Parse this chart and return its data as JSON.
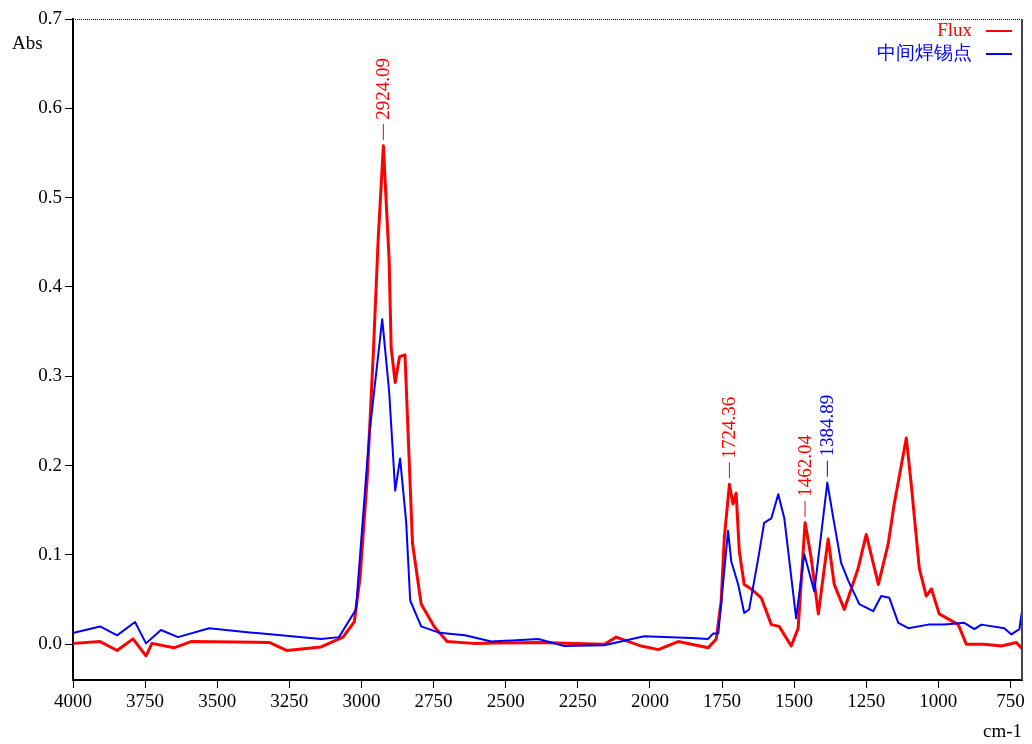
{
  "chart_data": {
    "type": "line",
    "xlabel": "cm-1",
    "ylabel": "Abs",
    "xlim": [
      4000,
      710
    ],
    "ylim": [
      -0.04,
      0.7
    ],
    "xticks": [
      4000,
      3750,
      3500,
      3250,
      3000,
      2750,
      2500,
      2250,
      2000,
      1750,
      1500,
      1250,
      1000,
      750
    ],
    "yticks": [
      {
        "value": 0,
        "label": "0.0"
      },
      {
        "value": 0.1,
        "label": "0.1"
      },
      {
        "value": 0.2,
        "label": "0.2"
      },
      {
        "value": 0.3,
        "label": "0.3"
      },
      {
        "value": 0.4,
        "label": "0.4"
      },
      {
        "value": 0.5,
        "label": "0.5"
      },
      {
        "value": 0.6,
        "label": "0.6"
      },
      {
        "value": 0.7,
        "label": "0.7"
      }
    ],
    "grid": false,
    "legend": "top right",
    "marker": "none",
    "line_style": "solid",
    "series": [
      {
        "name": "Flux",
        "color": "#ff0000",
        "x": [
          3997,
          3906,
          3847,
          3792,
          3747,
          3726,
          3650,
          3591,
          3320,
          3258,
          3140,
          3064,
          3025,
          3005,
          2980,
          2958,
          2942,
          2924,
          2904,
          2897,
          2883,
          2868,
          2849,
          2838,
          2823,
          2793,
          2748,
          2703,
          2613,
          2387,
          2158,
          2117,
          2030,
          1971,
          1902,
          1798,
          1770,
          1753,
          1742,
          1724.36,
          1712,
          1701,
          1690,
          1673,
          1649,
          1614,
          1579,
          1552,
          1510,
          1486,
          1462.04,
          1441,
          1416,
          1382,
          1361,
          1326,
          1278,
          1250,
          1208,
          1174,
          1153,
          1111,
          1094,
          1066,
          1042,
          1024,
          997,
          931,
          903,
          841,
          782,
          730,
          712
        ],
        "values": [
          0.001,
          0.003,
          -0.007,
          0.006,
          -0.013,
          0.001,
          -0.004,
          0.003,
          0.002,
          -0.007,
          -0.003,
          0.008,
          0.025,
          0.074,
          0.186,
          0.332,
          0.453,
          0.558,
          0.43,
          0.332,
          0.293,
          0.322,
          0.324,
          0.234,
          0.113,
          0.045,
          0.02,
          0.003,
          0.001,
          0.002,
          0,
          0.008,
          -0.002,
          -0.006,
          0.003,
          -0.004,
          0.006,
          0.048,
          0.119,
          0.179,
          0.157,
          0.169,
          0.104,
          0.067,
          0.062,
          0.052,
          0.022,
          0.02,
          -0.002,
          0.018,
          0.136,
          0.097,
          0.034,
          0.118,
          0.067,
          0.039,
          0.085,
          0.123,
          0.067,
          0.112,
          0.157,
          0.231,
          0.179,
          0.085,
          0.054,
          0.062,
          0.034,
          0.022,
          0,
          0,
          -0.002,
          0.002,
          -0.004
        ]
      },
      {
        "name": "中间焊锡点",
        "color": "#0000ff",
        "x": [
          3997,
          3906,
          3847,
          3785,
          3747,
          3695,
          3636,
          3528,
          3379,
          3140,
          3078,
          3019,
          2973,
          2928,
          2904,
          2883,
          2866,
          2845,
          2831,
          2793,
          2731,
          2641,
          2550,
          2387,
          2297,
          2158,
          2020,
          1857,
          1798,
          1781,
          1763,
          1729,
          1718,
          1694,
          1673,
          1656,
          1624,
          1604,
          1579,
          1555,
          1534,
          1493,
          1465,
          1430,
          1384.89,
          1364,
          1337,
          1312,
          1274,
          1226,
          1198,
          1170,
          1139,
          1104,
          1035,
          979,
          910,
          875,
          851,
          771,
          747,
          719,
          711
        ],
        "values": [
          0.013,
          0.02,
          0.01,
          0.025,
          0.001,
          0.016,
          0.008,
          0.018,
          0.013,
          0.006,
          0.008,
          0.039,
          0.234,
          0.364,
          0.283,
          0.172,
          0.208,
          0.137,
          0.049,
          0.02,
          0.013,
          0.01,
          0.003,
          0.006,
          -0.002,
          -0.001,
          0.009,
          0.007,
          0.006,
          0.012,
          0.012,
          0.127,
          0.093,
          0.067,
          0.035,
          0.039,
          0.097,
          0.136,
          0.141,
          0.168,
          0.141,
          0.029,
          0.101,
          0.059,
          0.181,
          0.141,
          0.091,
          0.071,
          0.045,
          0.037,
          0.054,
          0.052,
          0.024,
          0.018,
          0.022,
          0.022,
          0.024,
          0.017,
          0.022,
          0.018,
          0.011,
          0.017,
          0.035
        ]
      }
    ],
    "annotations": [
      {
        "text": "2924.09",
        "x": 2924,
        "y": 0.558
      },
      {
        "text": "1724.36",
        "x": 1724.36,
        "y": 0.179
      },
      {
        "text": "1462.04",
        "x": 1462.04,
        "y": 0.136
      },
      {
        "text": "1384.89",
        "x": 1384.89,
        "y": 0.181
      }
    ]
  }
}
